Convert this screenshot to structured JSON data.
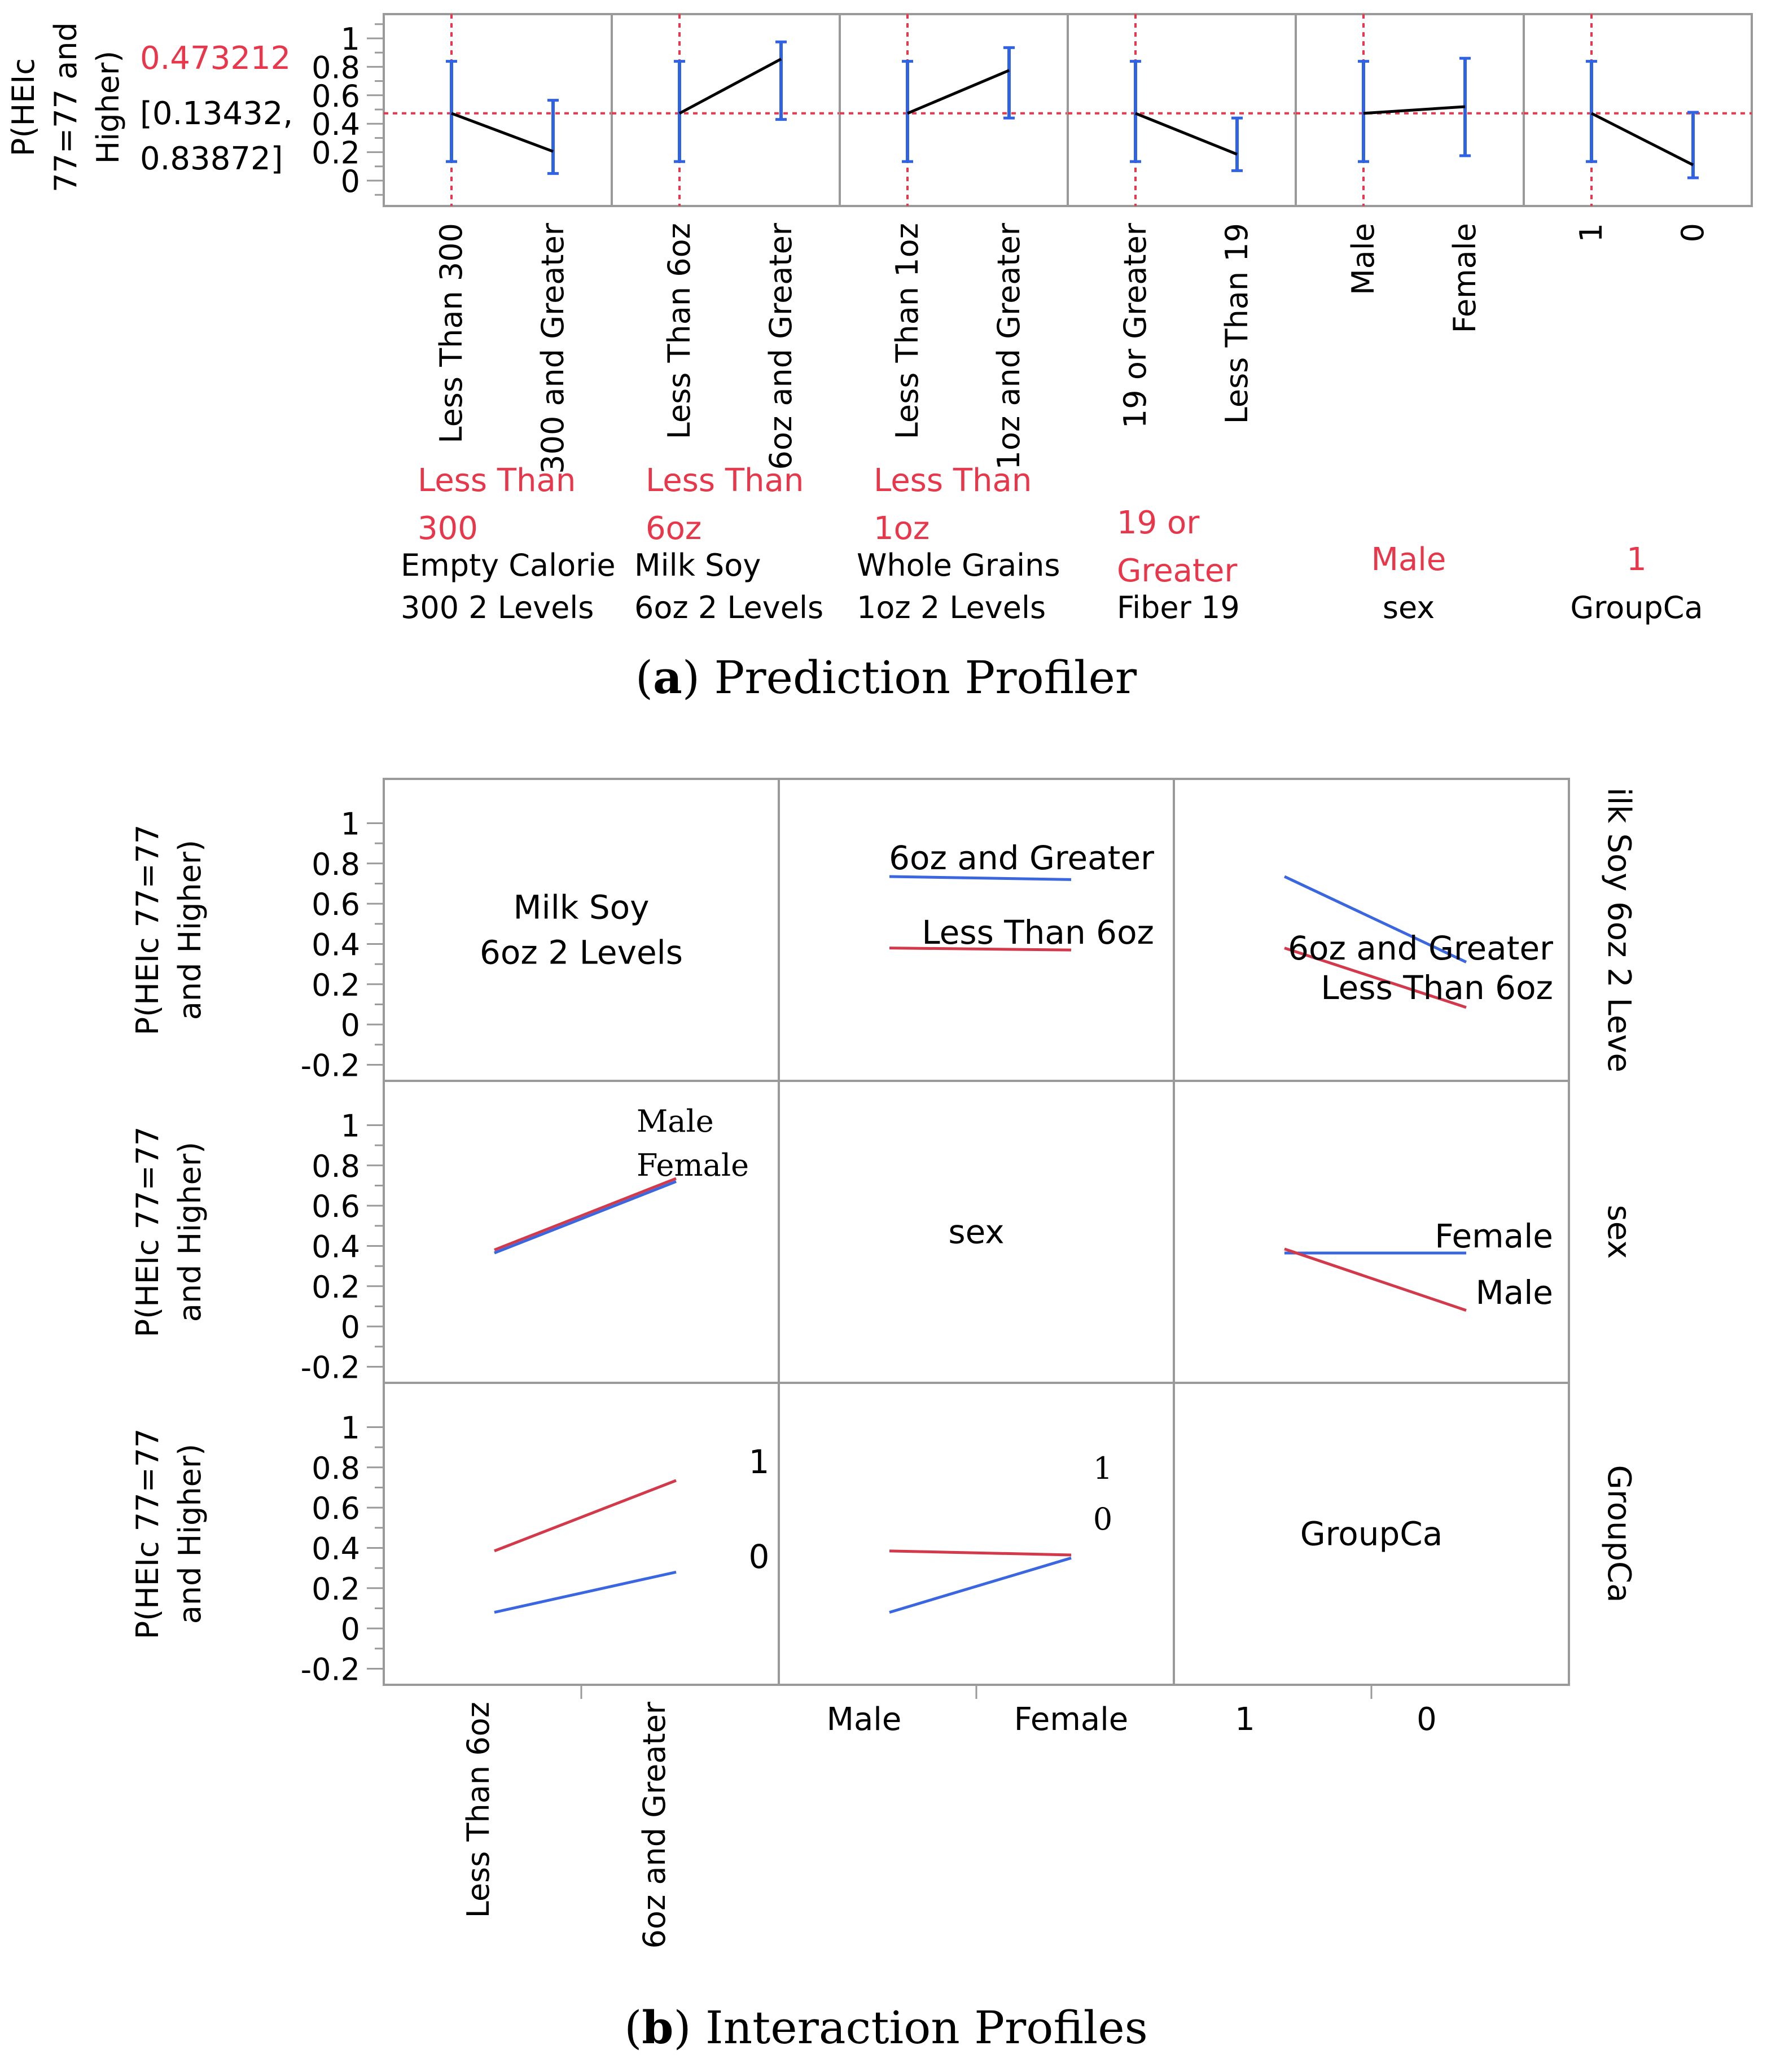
{
  "chart_data": [
    {
      "type": "line",
      "title": "Prediction Profiler",
      "caption_letter": "a",
      "ylabel_lines": [
        "P(HEIc",
        "77=77 and",
        "Higher)"
      ],
      "current_value": "0.473212",
      "ci_lines": [
        "[0.13432,",
        "0.83872]"
      ],
      "ylim": [
        -0.1,
        1.12
      ],
      "yticks": [
        0,
        0.2,
        0.4,
        0.6,
        0.8,
        1
      ],
      "ytick_labels": [
        "0",
        "0.2",
        "0.4",
        "0.6",
        "0.8",
        "1"
      ],
      "reference_y": 0.473212,
      "panels": [
        {
          "factor": [
            "Empty Calorie",
            "300 2 Levels"
          ],
          "levels": [
            "Less Than 300",
            "300 and Greater"
          ],
          "current": [
            "Less Than",
            "300"
          ],
          "values": [
            0.473,
            0.205
          ],
          "ci": [
            [
              0.134,
              0.839
            ],
            [
              0.05,
              0.565
            ]
          ]
        },
        {
          "factor": [
            "Milk Soy",
            "6oz 2 Levels"
          ],
          "levels": [
            "Less Than 6oz",
            "6oz and Greater"
          ],
          "current": [
            "Less Than",
            "6oz"
          ],
          "values": [
            0.473,
            0.855
          ],
          "ci": [
            [
              0.134,
              0.839
            ],
            [
              0.43,
              0.975
            ]
          ]
        },
        {
          "factor": [
            "Whole Grains",
            "1oz 2 Levels"
          ],
          "levels": [
            "Less Than 1oz",
            "1oz and Greater"
          ],
          "current": [
            "Less Than",
            "1oz"
          ],
          "values": [
            0.473,
            0.775
          ],
          "ci": [
            [
              0.134,
              0.839
            ],
            [
              0.44,
              0.935
            ]
          ]
        },
        {
          "factor": [
            "Fiber 19"
          ],
          "levels": [
            "19 or Greater",
            "Less Than 19"
          ],
          "current": [
            "19 or",
            "Greater"
          ],
          "values": [
            0.473,
            0.185
          ],
          "ci": [
            [
              0.134,
              0.839
            ],
            [
              0.07,
              0.44
            ]
          ]
        },
        {
          "factor": [
            "sex"
          ],
          "levels": [
            "Male",
            "Female"
          ],
          "current": [
            "Male"
          ],
          "values": [
            0.473,
            0.52
          ],
          "ci": [
            [
              0.134,
              0.839
            ],
            [
              0.175,
              0.86
            ]
          ]
        },
        {
          "factor": [
            "GroupCa"
          ],
          "levels": [
            "1",
            "0"
          ],
          "current": [
            "1"
          ],
          "values": [
            0.473,
            0.11
          ],
          "ci": [
            [
              0.134,
              0.839
            ],
            [
              0.02,
              0.48
            ]
          ]
        }
      ]
    },
    {
      "type": "line",
      "title": "Interaction Profiles",
      "caption_letter": "b",
      "ylabel_lines": [
        "P(HEIc 77=77",
        "and Higher)"
      ],
      "ylim": [
        -0.28,
        1.22
      ],
      "yticks": [
        -0.2,
        0,
        0.2,
        0.4,
        0.6,
        0.8,
        1
      ],
      "ytick_labels": [
        "-0.2",
        "0",
        "0.2",
        "0.4",
        "0.6",
        "0.8",
        "1"
      ],
      "row_labels": [
        "ilk Soy 6oz 2 Leve",
        "sex",
        "GroupCa"
      ],
      "col_axes": [
        {
          "levels": [
            "Less Than 6oz",
            "6oz and Greater"
          ]
        },
        {
          "levels": [
            "Male",
            "Female"
          ]
        },
        {
          "levels": [
            "1",
            "0"
          ]
        }
      ],
      "diagonal_labels": [
        [
          "Milk Soy",
          "6oz 2 Levels"
        ],
        [
          "sex"
        ],
        [
          "GroupCa"
        ]
      ],
      "cells": [
        {
          "row": 0,
          "col": 1,
          "series": [
            {
              "name": "6oz and Greater",
              "color": "#3a66e0",
              "x": [
                0,
                1
              ],
              "values": [
                0.735,
                0.72
              ]
            },
            {
              "name": "Less Than 6oz",
              "color": "#d23a4b",
              "x": [
                0,
                1
              ],
              "values": [
                0.38,
                0.37
              ]
            }
          ],
          "labels": [
            "6oz and Greater",
            "Less Than 6oz"
          ]
        },
        {
          "row": 0,
          "col": 2,
          "series": [
            {
              "name": "6oz and Greater",
              "color": "#3a66e0",
              "x": [
                0,
                1
              ],
              "values": [
                0.735,
                0.31
              ]
            },
            {
              "name": "Less Than 6oz",
              "color": "#d23a4b",
              "x": [
                0,
                1
              ],
              "values": [
                0.38,
                0.085
              ]
            }
          ],
          "labels": [
            "6oz and Greater",
            "Less Than 6oz"
          ]
        },
        {
          "row": 1,
          "col": 0,
          "series": [
            {
              "name": "Male",
              "color": "#d23a4b",
              "x": [
                0,
                1
              ],
              "values": [
                0.38,
                0.735
              ]
            },
            {
              "name": "Female",
              "color": "#3a66e0",
              "x": [
                0,
                1
              ],
              "values": [
                0.365,
                0.72
              ]
            }
          ],
          "labels": [
            "Male",
            "Female"
          ]
        },
        {
          "row": 1,
          "col": 2,
          "series": [
            {
              "name": "Female",
              "color": "#3a66e0",
              "x": [
                0,
                1
              ],
              "values": [
                0.365,
                0.365
              ]
            },
            {
              "name": "Male",
              "color": "#d23a4b",
              "x": [
                0,
                1
              ],
              "values": [
                0.385,
                0.08
              ]
            }
          ],
          "labels": [
            "Female",
            "Male"
          ]
        },
        {
          "row": 2,
          "col": 0,
          "series": [
            {
              "name": "1",
              "color": "#d23a4b",
              "x": [
                0,
                1
              ],
              "values": [
                0.385,
                0.735
              ]
            },
            {
              "name": "0",
              "color": "#3a66e0",
              "x": [
                0,
                1
              ],
              "values": [
                0.08,
                0.28
              ]
            }
          ],
          "labels": [
            "1",
            "0"
          ]
        },
        {
          "row": 2,
          "col": 1,
          "series": [
            {
              "name": "1",
              "color": "#d23a4b",
              "x": [
                0,
                1
              ],
              "values": [
                0.385,
                0.365
              ]
            },
            {
              "name": "0",
              "color": "#3a66e0",
              "x": [
                0,
                1
              ],
              "values": [
                0.08,
                0.35
              ]
            }
          ],
          "labels": [
            "1",
            "0"
          ]
        }
      ]
    }
  ]
}
